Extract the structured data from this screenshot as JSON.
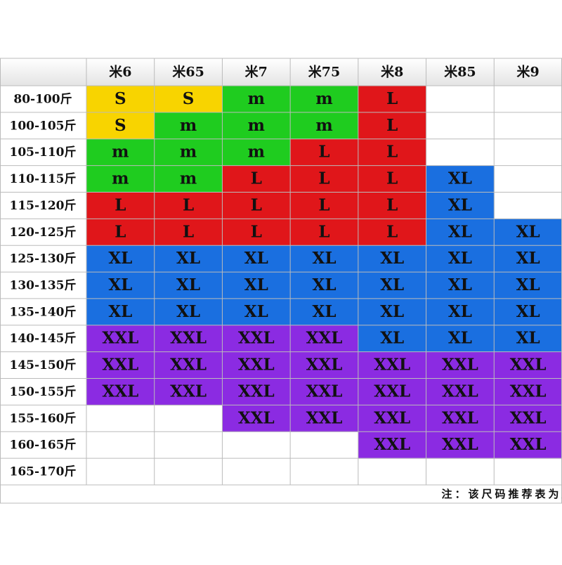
{
  "table": {
    "columns": [
      "米6",
      "米65",
      "米7",
      "米75",
      "米8",
      "米85",
      "米9"
    ],
    "rows": [
      {
        "label": "80-100斤",
        "cells": [
          "S",
          "S",
          "m",
          "m",
          "L",
          null,
          null
        ]
      },
      {
        "label": "100-105斤",
        "cells": [
          "S",
          "m",
          "m",
          "m",
          "L",
          null,
          null
        ]
      },
      {
        "label": "105-110斤",
        "cells": [
          "m",
          "m",
          "m",
          "L",
          "L",
          null,
          null
        ]
      },
      {
        "label": "110-115斤",
        "cells": [
          "m",
          "m",
          "L",
          "L",
          "L",
          "XL",
          null
        ]
      },
      {
        "label": "115-120斤",
        "cells": [
          "L",
          "L",
          "L",
          "L",
          "L",
          "XL",
          null
        ]
      },
      {
        "label": "120-125斤",
        "cells": [
          "L",
          "L",
          "L",
          "L",
          "L",
          "XL",
          "XL"
        ]
      },
      {
        "label": "125-130斤",
        "cells": [
          "XL",
          "XL",
          "XL",
          "XL",
          "XL",
          "XL",
          "XL"
        ]
      },
      {
        "label": "130-135斤",
        "cells": [
          "XL",
          "XL",
          "XL",
          "XL",
          "XL",
          "XL",
          "XL"
        ]
      },
      {
        "label": "135-140斤",
        "cells": [
          "XL",
          "XL",
          "XL",
          "XL",
          "XL",
          "XL",
          "XL"
        ]
      },
      {
        "label": "140-145斤",
        "cells": [
          "XXL",
          "XXL",
          "XXL",
          "XXL",
          "XL",
          "XL",
          "XL"
        ]
      },
      {
        "label": "145-150斤",
        "cells": [
          "XXL",
          "XXL",
          "XXL",
          "XXL",
          "XXL",
          "XXL",
          "XXL"
        ]
      },
      {
        "label": "150-155斤",
        "cells": [
          "XXL",
          "XXL",
          "XXL",
          "XXL",
          "XXL",
          "XXL",
          "XXL"
        ]
      },
      {
        "label": "155-160斤",
        "cells": [
          null,
          null,
          "XXL",
          "XXL",
          "XXL",
          "XXL",
          "XXL"
        ]
      },
      {
        "label": "160-165斤",
        "cells": [
          null,
          null,
          null,
          null,
          "XXL",
          "XXL",
          "XXL"
        ]
      },
      {
        "label": "165-170斤",
        "cells": [
          null,
          null,
          null,
          null,
          null,
          null,
          null
        ]
      }
    ],
    "size_colors": {
      "S": "#f8d400",
      "m": "#1fcc1f",
      "L": "#e0161a",
      "XL": "#1a6fe0",
      "XXL": "#8b2be2"
    },
    "note": "注：该尺码推荐表为宽松版型的推荐表"
  }
}
